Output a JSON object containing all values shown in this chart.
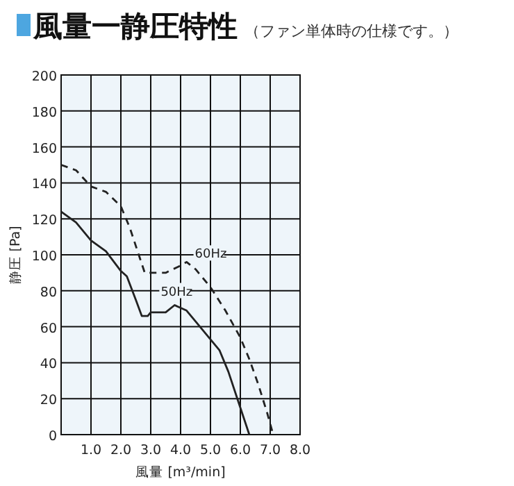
{
  "chart_data": {
    "type": "line",
    "title": "風量一静圧特性",
    "subtitle": "（ファン単体時の仕様です。）",
    "xlabel": "風量 [m³/min]",
    "ylabel": "静圧 [Pa]",
    "xlim": [
      0,
      8
    ],
    "xticks": [
      {
        "value": 1,
        "label": "1.0"
      },
      {
        "value": 2,
        "label": "2.0"
      },
      {
        "value": 3,
        "label": "3.0"
      },
      {
        "value": 4,
        "label": "4.0"
      },
      {
        "value": 5,
        "label": "5.0"
      },
      {
        "value": 6,
        "label": "6.0"
      },
      {
        "value": 7,
        "label": "7.0"
      },
      {
        "value": 8,
        "label": "8.0"
      }
    ],
    "ylim": [
      0,
      200
    ],
    "yticks": [
      0,
      20,
      40,
      60,
      80,
      100,
      120,
      140,
      160,
      180,
      200
    ],
    "grid": true,
    "legend": false,
    "series": [
      {
        "name": "60Hz",
        "color": "#222222",
        "line_style": "dashed",
        "x": [
          0,
          0.5,
          1.0,
          1.5,
          2.0,
          2.3,
          2.6,
          2.8,
          3.0,
          3.5,
          4.0,
          4.2,
          4.5,
          5.0,
          5.5,
          6.0,
          6.3,
          6.6,
          6.9,
          7.1
        ],
        "values": [
          150,
          147,
          138,
          135,
          127,
          115,
          100,
          90,
          90,
          90,
          94,
          96,
          92,
          82,
          69,
          54,
          42,
          28,
          12,
          0
        ]
      },
      {
        "name": "50Hz",
        "color": "#222222",
        "line_style": "solid",
        "x": [
          0,
          0.5,
          1.0,
          1.5,
          2.0,
          2.2,
          2.5,
          2.7,
          2.9,
          3.0,
          3.2,
          3.5,
          3.8,
          4.2,
          4.5,
          4.9,
          5.3,
          5.6,
          5.9,
          6.2,
          6.3
        ],
        "values": [
          124,
          118,
          108,
          102,
          91,
          88,
          75,
          66,
          66,
          68,
          68,
          68,
          72,
          69,
          63,
          55,
          47,
          35,
          20,
          5,
          0
        ]
      }
    ]
  }
}
